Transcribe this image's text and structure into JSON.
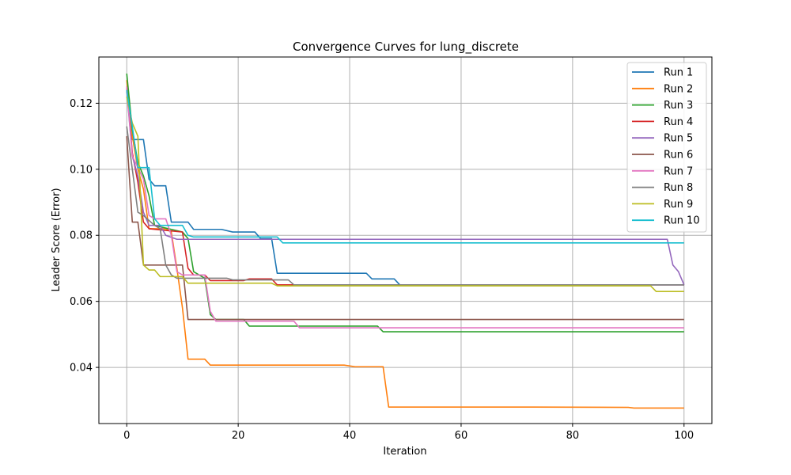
{
  "chart_data": {
    "type": "line",
    "title": "Convergence Curves for lung_discrete",
    "xlabel": "Iteration",
    "ylabel": "Leader Score (Error)",
    "xlim": [
      -5,
      105
    ],
    "ylim": [
      0.023,
      0.134
    ],
    "xticks": [
      0,
      20,
      40,
      60,
      80,
      100
    ],
    "xtick_labels": [
      "0",
      "20",
      "40",
      "60",
      "80",
      "100"
    ],
    "yticks": [
      0.04,
      0.06,
      0.08,
      0.1,
      0.12
    ],
    "ytick_labels": [
      "0.04",
      "0.06",
      "0.08",
      "0.10",
      "0.12"
    ],
    "grid": true,
    "legend_position": "top-right",
    "series": [
      {
        "name": "Run 1",
        "color": "#1f77b4",
        "points": [
          [
            0,
            0.124
          ],
          [
            1,
            0.109
          ],
          [
            3,
            0.109
          ],
          [
            4,
            0.097
          ],
          [
            5,
            0.095
          ],
          [
            7,
            0.095
          ],
          [
            8,
            0.084
          ],
          [
            11,
            0.084
          ],
          [
            12,
            0.0818
          ],
          [
            17,
            0.0818
          ],
          [
            19,
            0.081
          ],
          [
            23,
            0.081
          ],
          [
            24,
            0.079
          ],
          [
            26,
            0.079
          ],
          [
            27,
            0.0685
          ],
          [
            43,
            0.0685
          ],
          [
            44,
            0.0668
          ],
          [
            48,
            0.0668
          ],
          [
            49,
            0.065
          ],
          [
            100,
            0.065
          ]
        ]
      },
      {
        "name": "Run 2",
        "color": "#ff7f0e",
        "points": [
          [
            0,
            0.127
          ],
          [
            1,
            0.11
          ],
          [
            2,
            0.1
          ],
          [
            3,
            0.094
          ],
          [
            4,
            0.082
          ],
          [
            7,
            0.082
          ],
          [
            8,
            0.081
          ],
          [
            9,
            0.07
          ],
          [
            10,
            0.058
          ],
          [
            11,
            0.0425
          ],
          [
            14,
            0.0425
          ],
          [
            15,
            0.0407
          ],
          [
            39,
            0.0407
          ],
          [
            41,
            0.0402
          ],
          [
            46,
            0.0402
          ],
          [
            47,
            0.028
          ],
          [
            73,
            0.028
          ],
          [
            90,
            0.0279
          ],
          [
            91,
            0.0277
          ],
          [
            100,
            0.0277
          ]
        ]
      },
      {
        "name": "Run 3",
        "color": "#2ca02c",
        "points": [
          [
            0,
            0.129
          ],
          [
            1,
            0.112
          ],
          [
            2,
            0.102
          ],
          [
            3,
            0.098
          ],
          [
            4,
            0.092
          ],
          [
            5,
            0.083
          ],
          [
            10,
            0.081
          ],
          [
            11,
            0.079
          ],
          [
            12,
            0.069
          ],
          [
            13,
            0.068
          ],
          [
            14,
            0.067
          ],
          [
            15,
            0.056
          ],
          [
            16,
            0.0545
          ],
          [
            21,
            0.0545
          ],
          [
            22,
            0.0525
          ],
          [
            45,
            0.0525
          ],
          [
            46,
            0.0508
          ],
          [
            100,
            0.0508
          ]
        ]
      },
      {
        "name": "Run 4",
        "color": "#d62728",
        "points": [
          [
            0,
            0.125
          ],
          [
            1,
            0.105
          ],
          [
            2,
            0.096
          ],
          [
            3,
            0.084
          ],
          [
            4,
            0.082
          ],
          [
            10,
            0.081
          ],
          [
            11,
            0.07
          ],
          [
            12,
            0.068
          ],
          [
            14,
            0.068
          ],
          [
            15,
            0.0663
          ],
          [
            21,
            0.0663
          ],
          [
            22,
            0.0668
          ],
          [
            26,
            0.0668
          ],
          [
            27,
            0.065
          ],
          [
            100,
            0.065
          ]
        ]
      },
      {
        "name": "Run 5",
        "color": "#9467bd",
        "points": [
          [
            0,
            0.124
          ],
          [
            1,
            0.104
          ],
          [
            2,
            0.098
          ],
          [
            3,
            0.087
          ],
          [
            4,
            0.083
          ],
          [
            6,
            0.083
          ],
          [
            7,
            0.08
          ],
          [
            9,
            0.0788
          ],
          [
            97,
            0.0788
          ],
          [
            98,
            0.071
          ],
          [
            99,
            0.069
          ],
          [
            100,
            0.065
          ]
        ]
      },
      {
        "name": "Run 6",
        "color": "#8c564b",
        "points": [
          [
            0,
            0.11
          ],
          [
            1,
            0.084
          ],
          [
            2,
            0.084
          ],
          [
            3,
            0.071
          ],
          [
            10,
            0.071
          ],
          [
            11,
            0.0545
          ],
          [
            100,
            0.0545
          ]
        ]
      },
      {
        "name": "Run 7",
        "color": "#e377c2",
        "points": [
          [
            0,
            0.125
          ],
          [
            1,
            0.104
          ],
          [
            3,
            0.097
          ],
          [
            4,
            0.086
          ],
          [
            5,
            0.085
          ],
          [
            7,
            0.085
          ],
          [
            8,
            0.08
          ],
          [
            9,
            0.069
          ],
          [
            10,
            0.068
          ],
          [
            14,
            0.068
          ],
          [
            15,
            0.057
          ],
          [
            16,
            0.054
          ],
          [
            30,
            0.054
          ],
          [
            31,
            0.052
          ],
          [
            100,
            0.052
          ]
        ]
      },
      {
        "name": "Run 8",
        "color": "#7f7f7f",
        "points": [
          [
            0,
            0.113
          ],
          [
            1,
            0.1
          ],
          [
            2,
            0.087
          ],
          [
            3,
            0.086
          ],
          [
            5,
            0.083
          ],
          [
            6,
            0.082
          ],
          [
            7,
            0.071
          ],
          [
            8,
            0.068
          ],
          [
            9,
            0.067
          ],
          [
            18,
            0.067
          ],
          [
            19,
            0.0665
          ],
          [
            29,
            0.0665
          ],
          [
            30,
            0.065
          ],
          [
            100,
            0.065
          ]
        ]
      },
      {
        "name": "Run 9",
        "color": "#bcbd22",
        "points": [
          [
            0,
            0.122
          ],
          [
            1,
            0.114
          ],
          [
            2,
            0.11
          ],
          [
            3,
            0.071
          ],
          [
            4,
            0.0695
          ],
          [
            5,
            0.0695
          ],
          [
            6,
            0.0675
          ],
          [
            10,
            0.0675
          ],
          [
            11,
            0.0655
          ],
          [
            26,
            0.0655
          ],
          [
            27,
            0.0647
          ],
          [
            94,
            0.0647
          ],
          [
            95,
            0.063
          ],
          [
            100,
            0.063
          ]
        ]
      },
      {
        "name": "Run 10",
        "color": "#17becf",
        "points": [
          [
            0,
            0.124
          ],
          [
            1,
            0.113
          ],
          [
            2,
            0.1005
          ],
          [
            4,
            0.1005
          ],
          [
            5,
            0.085
          ],
          [
            6,
            0.083
          ],
          [
            10,
            0.083
          ],
          [
            11,
            0.08
          ],
          [
            12,
            0.0795
          ],
          [
            27,
            0.0795
          ],
          [
            28,
            0.0777
          ],
          [
            100,
            0.0777
          ]
        ]
      }
    ]
  }
}
